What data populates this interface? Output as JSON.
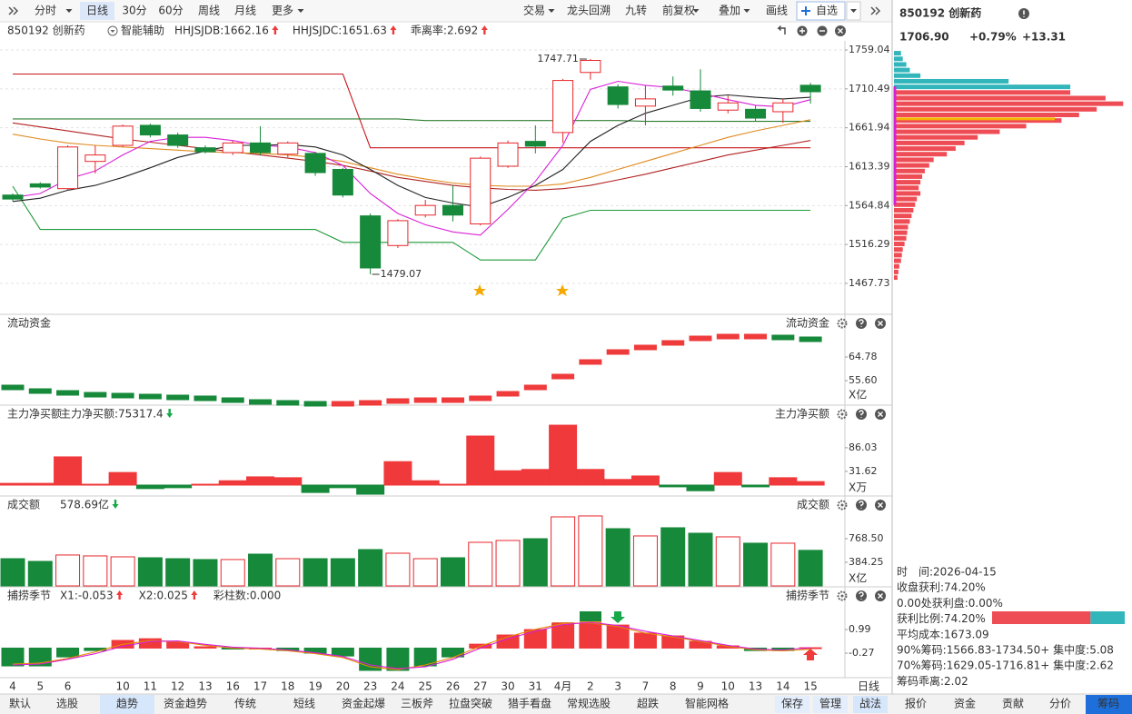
{
  "toolbar": {
    "periods": [
      "分时",
      "日线",
      "30分",
      "60分",
      "周线",
      "月线",
      "更多"
    ],
    "active_period_index": 1,
    "tools": [
      "交易",
      "龙头回溯",
      "九转",
      "前复权",
      "叠加",
      "画线"
    ],
    "watchlist": "自选"
  },
  "info": {
    "name": "850192 创新药",
    "assist": "智能辅助",
    "legend": [
      {
        "text": "HHJSJDB:1662.16",
        "color": "#e48a00",
        "arrow": "up"
      },
      {
        "text": "HHJSJDC:1651.63",
        "color": "#e8262b",
        "arrow": "up"
      },
      {
        "text": "乖离率:2.692",
        "color": "#e48a00",
        "arrow": "up"
      }
    ]
  },
  "chart_data": [
    {
      "type": "candlestick",
      "categories": [
        "4",
        "5",
        "6",
        null,
        "10",
        "11",
        "12",
        "13",
        "16",
        "17",
        "18",
        "19",
        "20",
        "23",
        "24",
        "25",
        "26",
        "27",
        "30",
        "31",
        "4月",
        "2",
        "3",
        "7",
        "8",
        "9",
        "10",
        "13",
        "14",
        "15"
      ],
      "open": [
        1578,
        1592,
        1586,
        1620,
        1640,
        1665,
        1653,
        1637,
        1631,
        1643,
        1629,
        1630,
        1610,
        1552,
        1515,
        1553,
        1565,
        1542,
        1614,
        1645,
        1656,
        1731,
        1713,
        1689,
        1714,
        1708,
        1684,
        1685,
        1682,
        1715
      ],
      "high": [
        1580,
        1594,
        1640,
        1640,
        1666,
        1667,
        1656,
        1640,
        1646,
        1664,
        1645,
        1632,
        1612,
        1555,
        1548,
        1572,
        1590,
        1626,
        1646,
        1665,
        1723,
        1747.71,
        1716,
        1715,
        1726,
        1735,
        1702,
        1690,
        1698,
        1718
      ],
      "low": [
        1570,
        1586,
        1584,
        1605,
        1638,
        1650,
        1637,
        1630,
        1628,
        1628,
        1625,
        1602,
        1575,
        1479.07,
        1512,
        1550,
        1545,
        1540,
        1612,
        1630,
        1643,
        1722,
        1686,
        1665,
        1702,
        1682,
        1680,
        1670,
        1668,
        1692
      ],
      "close": [
        1573,
        1588,
        1638,
        1628,
        1664,
        1653,
        1640,
        1632,
        1643,
        1631,
        1643,
        1606,
        1578,
        1487,
        1546,
        1565,
        1553,
        1624,
        1643,
        1639,
        1721,
        1746,
        1691,
        1698,
        1709,
        1686,
        1693,
        1674,
        1693,
        1706.9
      ],
      "colors": {
        "up": "#e8262b",
        "down": "#17893a"
      },
      "series": [
        {
          "color": "#c8171d",
          "values": [
            1729,
            1729,
            1729,
            1729,
            1729,
            1729,
            1729,
            1729,
            1729,
            1729,
            1729,
            1729,
            1729,
            1637,
            1637,
            1637,
            1637,
            1637,
            1637,
            1637,
            1637,
            1637,
            1637,
            1637,
            1637,
            1637,
            1637,
            1637,
            1637,
            1637
          ]
        },
        {
          "color": "#1f9a3a",
          "values": [
            1589,
            1535,
            1535,
            1535,
            1535,
            1535,
            1535,
            1535,
            1535,
            1535,
            1535,
            1535,
            1519,
            1519,
            1519,
            1519,
            1519,
            1497,
            1497,
            1497,
            1549,
            1559,
            1559,
            1559,
            1559,
            1559,
            1559,
            1559,
            1559,
            1559
          ]
        },
        {
          "color": "#2e7d32",
          "values": [
            1673,
            1673,
            1673,
            1673,
            1673,
            1673,
            1673,
            1673,
            1673,
            1673,
            1673,
            1673,
            1673,
            1673,
            1673,
            1671,
            1671,
            1671,
            1671,
            1671,
            1671,
            1671,
            1671,
            1670,
            1670,
            1670,
            1670,
            1670,
            1670,
            1670
          ]
        },
        {
          "color": "#b22222",
          "values": [
            1668,
            1663,
            1658,
            1653,
            1648,
            1644,
            1640,
            1636,
            1632,
            1628,
            1624,
            1620,
            1615,
            1608,
            1600,
            1595,
            1590,
            1587,
            1585,
            1584,
            1586,
            1590,
            1597,
            1604,
            1612,
            1620,
            1628,
            1634,
            1640,
            1646
          ]
        },
        {
          "color": "#e08a1e",
          "values": [
            1654,
            1648,
            1643,
            1640,
            1638,
            1636,
            1634,
            1632,
            1631,
            1630,
            1628,
            1625,
            1620,
            1612,
            1604,
            1598,
            1593,
            1590,
            1589,
            1589,
            1592,
            1600,
            1610,
            1620,
            1630,
            1640,
            1650,
            1658,
            1665,
            1672
          ]
        },
        {
          "color": "#222222",
          "values": [
            1570,
            1574,
            1584,
            1590,
            1600,
            1612,
            1625,
            1633,
            1640,
            1640,
            1641,
            1638,
            1628,
            1610,
            1590,
            1575,
            1568,
            1563,
            1575,
            1590,
            1610,
            1645,
            1665,
            1680,
            1690,
            1700,
            1703,
            1700,
            1698,
            1700
          ]
        },
        {
          "color": "#d81fd8",
          "values": [
            1575,
            1580,
            1598,
            1608,
            1628,
            1645,
            1650,
            1650,
            1646,
            1640,
            1638,
            1631,
            1615,
            1580,
            1555,
            1541,
            1532,
            1528,
            1560,
            1595,
            1640,
            1710,
            1720,
            1715,
            1712,
            1705,
            1697,
            1690,
            1688,
            1697
          ]
        }
      ],
      "annotations": [
        {
          "label": "1747.71",
          "value": 1747.71,
          "at": "high"
        },
        {
          "label": "1479.07",
          "value": 1479.07,
          "at": "low"
        }
      ],
      "ylim": [
        1430.3,
        1770.4
      ],
      "yticks": [
        1759.04,
        1710.49,
        1661.94,
        1613.39,
        1564.84,
        1516.29,
        1467.73
      ],
      "grid": true
    },
    {
      "type": "level",
      "title": "流动资金",
      "unit": "X亿",
      "values": [
        53.83,
        52.42,
        51.71,
        51.0,
        50.66,
        50.3,
        49.95,
        49.6,
        48.89,
        48.18,
        47.83,
        47.48,
        47.48,
        47.83,
        48.54,
        48.89,
        48.89,
        49.6,
        51.36,
        53.83,
        58.07,
        63.72,
        67.6,
        69.37,
        71.14,
        72.9,
        73.61,
        73.61,
        73.26,
        72.55
      ],
      "colors": {
        "up": "#ef3b3b",
        "down": "#17893a"
      },
      "ylim": [
        47.12,
        76.43
      ],
      "yticks": [
        64.78,
        {
          "value": 55.6,
          "label": "55.60"
        }
      ]
    },
    {
      "type": "bar",
      "title": "主力净买额",
      "unit": "X万",
      "legend": [
        {
          "text": "主力净买额:75317.4",
          "color": "#e8262b",
          "arrow": "down"
        }
      ],
      "values": [
        4,
        4,
        65,
        2,
        29,
        -8,
        -6,
        2,
        10,
        19,
        17,
        -17,
        -6,
        -21,
        54,
        10,
        2,
        113,
        33,
        36,
        138,
        36,
        13,
        21,
        -4,
        -13,
        29,
        -4,
        17,
        8
      ],
      "colors": {
        "up": "#f0393b",
        "down": "#17893a"
      },
      "ylim": [
        -23,
        144.4
      ],
      "yticks": [
        86.03,
        31.62
      ]
    },
    {
      "type": "bar",
      "title": "成交额",
      "unit": "X亿",
      "direction": "candles",
      "hollow_up": true,
      "legend": [
        {
          "text": "578.69亿",
          "color": "#333333",
          "arrow": "down"
        }
      ],
      "values": [
        443,
        399,
        503,
        488,
        473,
        458,
        443,
        429,
        429,
        517,
        443,
        443,
        443,
        591,
        532,
        443,
        458,
        709,
        739,
        768,
        1123,
        1138,
        931,
        813,
        946,
        857,
        798,
        695,
        695,
        578.69
      ],
      "colors": {
        "up": "#e8262b",
        "down": "#17893a"
      },
      "ylim": [
        0,
        1182
      ],
      "yticks": [
        {
          "value": 768.5,
          "label": "768.50"
        },
        384.25
      ]
    },
    {
      "type": "bar",
      "title": "捕捞季节",
      "legend": [
        {
          "text": "X1:-0.053",
          "color": "#e48a00",
          "arrow": "up"
        },
        {
          "text": "X2:0.025",
          "color": "#d81fd8",
          "arrow": "up"
        },
        {
          "text": "彩柱数:0.000",
          "color": "#17893a"
        }
      ],
      "values": [
        -0.95,
        -0.95,
        -0.47,
        -0.13,
        0.41,
        0.5,
        0.31,
        0.07,
        -0.03,
        0.0,
        -0.13,
        -0.27,
        -0.42,
        -1.19,
        -1.19,
        -0.95,
        -0.47,
        0.21,
        0.7,
        0.99,
        1.33,
        1.33,
        1.23,
        0.8,
        0.65,
        0.36,
        0.12,
        -0.13,
        -0.13,
        0.02
      ],
      "series": [
        {
          "color": "#e48a00",
          "values": [
            -0.85,
            -0.8,
            -0.55,
            -0.2,
            0.2,
            0.4,
            0.35,
            0.15,
            0.0,
            -0.05,
            -0.15,
            -0.3,
            -0.5,
            -1.0,
            -1.15,
            -0.9,
            -0.5,
            0.1,
            0.6,
            1.0,
            1.3,
            1.35,
            1.15,
            0.8,
            0.6,
            0.35,
            0.1,
            -0.1,
            -0.15,
            -0.053
          ]
        },
        {
          "color": "#d81fd8",
          "values": [
            -0.9,
            -0.85,
            -0.6,
            -0.3,
            0.1,
            0.35,
            0.38,
            0.2,
            0.05,
            0.0,
            -0.1,
            -0.25,
            -0.45,
            -0.9,
            -1.1,
            -1.0,
            -0.6,
            0.0,
            0.5,
            0.9,
            1.25,
            1.38,
            1.2,
            0.9,
            0.65,
            0.4,
            0.15,
            -0.05,
            -0.1,
            0.025
          ]
        }
      ],
      "colors": {
        "up": "#f0393b",
        "down": "#17893a"
      },
      "ylim": [
        -1.53,
        2.35
      ],
      "yticks": [
        0.99,
        -0.27
      ]
    },
    {
      "type": "hbar",
      "prices": [
        1755,
        1748,
        1741,
        1734,
        1727,
        1720,
        1713,
        1706,
        1699,
        1692,
        1685,
        1678,
        1671,
        1664,
        1657,
        1650,
        1643,
        1636,
        1629,
        1622,
        1615,
        1608,
        1601,
        1594,
        1587,
        1580,
        1573,
        1566,
        1559,
        1552,
        1545,
        1538,
        1531,
        1524,
        1517,
        1510,
        1503,
        1496,
        1489,
        1482,
        1475
      ],
      "values": [
        8,
        10,
        14,
        18,
        30,
        130,
        200,
        200,
        240,
        260,
        230,
        210,
        190,
        150,
        120,
        95,
        80,
        70,
        60,
        45,
        40,
        35,
        32,
        30,
        28,
        30,
        26,
        24,
        22,
        20,
        18,
        16,
        15,
        14,
        12,
        10,
        9,
        8,
        6,
        5,
        4
      ],
      "xlim": [
        0,
        270
      ],
      "reference_price": 1706.9,
      "average_cost": 1673.09,
      "profit_ratio": 74.2,
      "colors": {
        "above": "#33b6bb",
        "below": "#ef4d55",
        "average": "#f5b400"
      }
    }
  ],
  "quote": {
    "title": "850192 创新药",
    "price": "1706.90",
    "change_pct": "+0.79%",
    "change": "+13.31"
  },
  "chip_stats": [
    "时　间:2026-04-15",
    "收盘获利:74.20%",
    "0.00处获利盘:0.00%",
    "获利比例:74.20%",
    "平均成本:1673.09",
    "90%筹码:1566.83-1734.50+ 集中度:5.08",
    "70%筹码:1629.05-1716.81+ 集中度:2.62",
    "筹码乖离:2.02"
  ],
  "bottom_tabs": {
    "strategies": [
      "默认",
      "选股",
      "趋势",
      "资金趋势",
      "传统",
      "短线",
      "资金起爆",
      "三板斧",
      "拉盘突破",
      "猎手看盘",
      "常规选股",
      "超跌",
      "智能网格"
    ],
    "active_index": 2,
    "actions": [
      "保存",
      "管理",
      "战法"
    ]
  },
  "right_tabs": {
    "items": [
      "报价",
      "资金",
      "贡献",
      "分价",
      "筹码"
    ],
    "active_index": 4
  }
}
